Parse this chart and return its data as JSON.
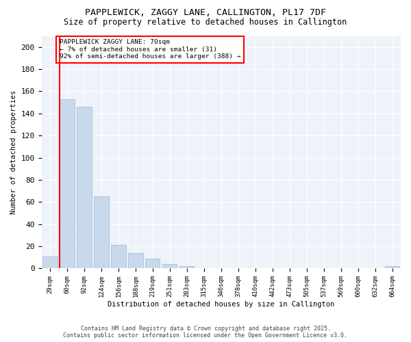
{
  "title_line1": "PAPPLEWICK, ZAGGY LANE, CALLINGTON, PL17 7DF",
  "title_line2": "Size of property relative to detached houses in Callington",
  "xlabel": "Distribution of detached houses by size in Callington",
  "ylabel": "Number of detached properties",
  "bar_labels": [
    "29sqm",
    "60sqm",
    "92sqm",
    "124sqm",
    "156sqm",
    "188sqm",
    "219sqm",
    "251sqm",
    "283sqm",
    "315sqm",
    "346sqm",
    "378sqm",
    "410sqm",
    "442sqm",
    "473sqm",
    "505sqm",
    "537sqm",
    "569sqm",
    "600sqm",
    "632sqm",
    "664sqm"
  ],
  "bar_values": [
    11,
    153,
    146,
    65,
    21,
    14,
    9,
    4,
    2,
    0,
    0,
    0,
    0,
    0,
    0,
    0,
    0,
    0,
    0,
    0,
    2
  ],
  "bar_color": "#c9d9ec",
  "bar_edge_color": "#a0b8d8",
  "red_line_x": 0.56,
  "annotation_text": "PAPPLEWICK ZAGGY LANE: 70sqm\n← 7% of detached houses are smaller (31)\n92% of semi-detached houses are larger (388) →",
  "annotation_box_color": "white",
  "annotation_box_edge_color": "red",
  "ylim": [
    0,
    210
  ],
  "yticks": [
    0,
    20,
    40,
    60,
    80,
    100,
    120,
    140,
    160,
    180,
    200
  ],
  "background_color": "#eef2f9",
  "grid_color": "white",
  "footer_line1": "Contains HM Land Registry data © Crown copyright and database right 2025.",
  "footer_line2": "Contains public sector information licensed under the Open Government Licence v3.0."
}
